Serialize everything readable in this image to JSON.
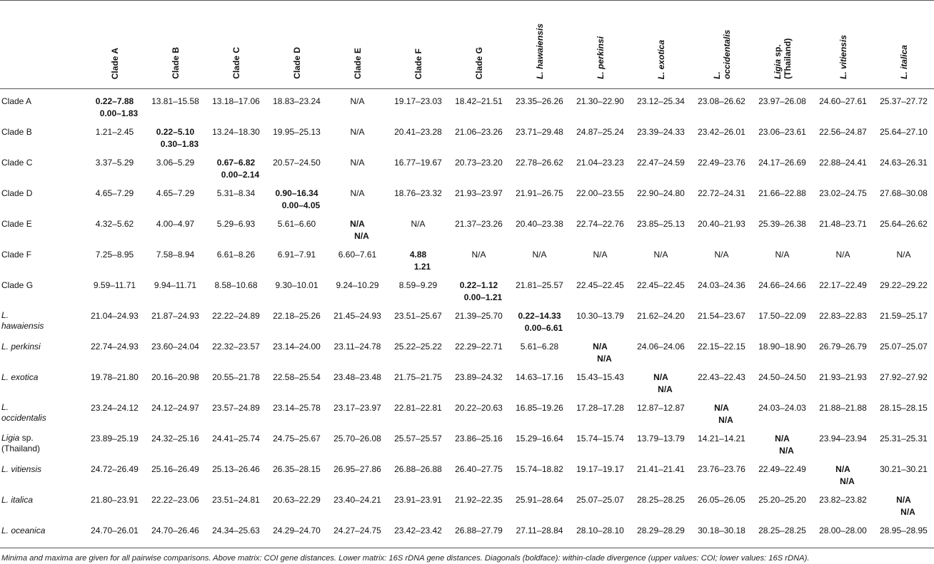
{
  "table": {
    "columns": [
      "Clade A",
      "Clade B",
      "Clade C",
      "Clade D",
      "Clade E",
      "Clade F",
      "Clade G",
      "L. hawaiensis",
      "L. perkinsi",
      "L. exotica",
      "L. occidentalis",
      "Ligia sp. (Thailand)",
      "L. vitiensis",
      "L. italica"
    ],
    "rows": [
      {
        "label": "Clade A",
        "cells": [
          [
            "0.22–7.88",
            "0.00–1.83"
          ],
          "13.81–15.58",
          "13.18–17.06",
          "18.83–23.24",
          "N/A",
          "19.17–23.03",
          "18.42–21.51",
          "23.35–26.26",
          "21.30–22.90",
          "23.12–25.34",
          "23.08–26.62",
          "23.97–26.08",
          "24.60–27.61",
          "25.37–27.72"
        ]
      },
      {
        "label": "Clade B",
        "cells": [
          "1.21–2.45",
          [
            "0.22–5.10",
            "0.30–1.83"
          ],
          "13.24–18.30",
          "19.95–25.13",
          "N/A",
          "20.41–23.28",
          "21.06–23.26",
          "23.71–29.48",
          "24.87–25.24",
          "23.39–24.33",
          "23.42–26.01",
          "23.06–23.61",
          "22.56–24.87",
          "25.64–27.10"
        ]
      },
      {
        "label": "Clade C",
        "cells": [
          "3.37–5.29",
          "3.06–5.29",
          [
            "0.67–6.82",
            "0.00–2.14"
          ],
          "20.57–24.50",
          "N/A",
          "16.77–19.67",
          "20.73–23.20",
          "22.78–26.62",
          "21.04–23.23",
          "22.47–24.59",
          "22.49–23.76",
          "24.17–26.69",
          "22.88–24.41",
          "24.63–26.31"
        ]
      },
      {
        "label": "Clade D",
        "cells": [
          "4.65–7.29",
          "4.65–7.29",
          "5.31–8.34",
          [
            "0.90–16.34",
            "0.00–4.05"
          ],
          "N/A",
          "18.76–23.32",
          "21.93–23.97",
          "21.91–26.75",
          "22.00–23.55",
          "22.90–24.80",
          "22.72–24.31",
          "21.66–22.88",
          "23.02–24.75",
          "27.68–30.08"
        ]
      },
      {
        "label": "Clade E",
        "cells": [
          "4.32–5.62",
          "4.00–4.97",
          "5.29–6.93",
          "5.61–6.60",
          [
            "N/A",
            "N/A"
          ],
          "N/A",
          "21.37–23.26",
          "20.40–23.38",
          "22.74–22.76",
          "23.85–25.13",
          "20.40–21.93",
          "25.39–26.38",
          "21.48–23.71",
          "25.64–26.62"
        ]
      },
      {
        "label": "Clade F",
        "cells": [
          "7.25–8.95",
          "7.58–8.94",
          "6.61–8.26",
          "6.91–7.91",
          "6.60–7.61",
          [
            "4.88",
            "1.21"
          ],
          "N/A",
          "N/A",
          "N/A",
          "N/A",
          "N/A",
          "N/A",
          "N/A",
          "N/A"
        ]
      },
      {
        "label": "Clade G",
        "cells": [
          "9.59–11.71",
          "9.94–11.71",
          "8.58–10.68",
          "9.30–10.01",
          "9.24–10.29",
          "8.59–9.29",
          [
            "0.22–1.12",
            "0.00–1.21"
          ],
          "21.81–25.57",
          "22.45–22.45",
          "22.45–22.45",
          "24.03–24.36",
          "24.66–24.66",
          "22.17–22.49",
          "29.22–29.22"
        ]
      },
      {
        "label": "L. hawaiensis",
        "cells": [
          "21.04–24.93",
          "21.87–24.93",
          "22.22–24.89",
          "22.18–25.26",
          "21.45–24.93",
          "23.51–25.67",
          "21.39–25.70",
          [
            "0.22–14.33",
            "0.00–6.61"
          ],
          "10.30–13.79",
          "21.62–24.20",
          "21.54–23.67",
          "17.50–22.09",
          "22.83–22.83",
          "21.59–25.17"
        ]
      },
      {
        "label": "L. perkinsi",
        "cells": [
          "22.74–24.93",
          "23.60–24.04",
          "22.32–23.57",
          "23.14–24.00",
          "23.11–24.78",
          "25.22–25.22",
          "22.29–22.71",
          "5.61–6.28",
          [
            "N/A",
            "N/A"
          ],
          "24.06–24.06",
          "22.15–22.15",
          "18.90–18.90",
          "26.79–26.79",
          "25.07–25.07"
        ]
      },
      {
        "label": "L. exotica",
        "cells": [
          "19.78–21.80",
          "20.16–20.98",
          "20.55–21.78",
          "22.58–25.54",
          "23.48–23.48",
          "21.75–21.75",
          "23.89–24.32",
          "14.63–17.16",
          "15.43–15.43",
          [
            "N/A",
            "N/A"
          ],
          "22.43–22.43",
          "24.50–24.50",
          "21.93–21.93",
          "27.92–27.92"
        ]
      },
      {
        "label": "L. occidentalis",
        "cells": [
          "23.24–24.12",
          "24.12–24.97",
          "23.57–24.89",
          "23.14–25.78",
          "23.17–23.97",
          "22.81–22.81",
          "20.22–20.63",
          "16.85–19.26",
          "17.28–17.28",
          "12.87–12.87",
          [
            "N/A",
            "N/A"
          ],
          "24.03–24.03",
          "21.88–21.88",
          "28.15–28.15"
        ]
      },
      {
        "label": "Ligia sp. (Thailand)",
        "cells": [
          "23.89–25.19",
          "24.32–25.16",
          "24.41–25.74",
          "24.75–25.67",
          "25.70–26.08",
          "25.57–25.57",
          "23.86–25.16",
          "15.29–16.64",
          "15.74–15.74",
          "13.79–13.79",
          "14.21–14.21",
          [
            "N/A",
            "N/A"
          ],
          "23.94–23.94",
          "25.31–25.31"
        ]
      },
      {
        "label": "L. vitiensis",
        "cells": [
          "24.72–26.49",
          "25.16–26.49",
          "25.13–26.46",
          "26.35–28.15",
          "26.95–27.86",
          "26.88–26.88",
          "26.40–27.75",
          "15.74–18.82",
          "19.17–19.17",
          "21.41–21.41",
          "23.76–23.76",
          "22.49–22.49",
          [
            "N/A",
            "N/A"
          ],
          "30.21–30.21"
        ]
      },
      {
        "label": "L. italica",
        "cells": [
          "21.80–23.91",
          "22.22–23.06",
          "23.51–24.81",
          "20.63–22.29",
          "23.40–24.21",
          "23.91–23.91",
          "21.92–22.35",
          "25.91–28.64",
          "25.07–25.07",
          "28.25–28.25",
          "26.05–26.05",
          "25.20–25.20",
          "23.82–23.82",
          [
            "N/A",
            "N/A"
          ]
        ]
      },
      {
        "label": "L. oceanica",
        "cells": [
          "24.70–26.01",
          "24.70–26.46",
          "24.34–25.63",
          "24.29–24.70",
          "24.27–24.75",
          "23.42–23.42",
          "26.88–27.79",
          "27.11–28.84",
          "28.10–28.10",
          "28.29–28.29",
          "30.18–30.18",
          "28.25–28.25",
          "28.00–28.00",
          "28.95–28.95"
        ]
      }
    ],
    "footnote": "Minima and maxima are given for all pairwise comparisons. Above matrix: COI gene distances. Lower matrix: 16S rDNA gene distances. Diagonals (boldface): within-clade divergence (upper values: COI; lower values: 16S rDNA)."
  }
}
